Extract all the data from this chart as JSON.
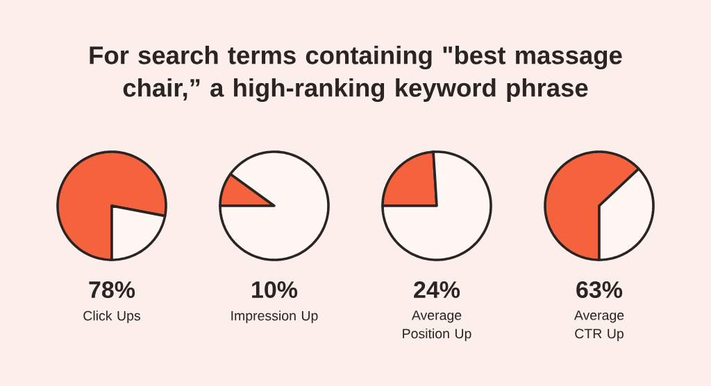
{
  "chart_data": [
    {
      "type": "other",
      "title": "For search terms containing \"best massage chair,” a high-ranking keyword phrase"
    },
    {
      "type": "pie",
      "title": "78%",
      "subtitle": "Click Ups",
      "categories": [
        null,
        null
      ],
      "values": [
        78,
        22
      ],
      "colors": [
        "#f4633e",
        "#fef7f4"
      ]
    },
    {
      "type": "pie",
      "title": "10%",
      "subtitle": "Impression Up",
      "categories": [
        null,
        null
      ],
      "values": [
        10,
        90
      ],
      "colors": [
        "#f4633e",
        "#fef7f4"
      ]
    },
    {
      "type": "pie",
      "title": "24%",
      "subtitle": "Average Position Up",
      "categories": [
        null,
        null
      ],
      "values": [
        24,
        76
      ],
      "colors": [
        "#f4633e",
        "#fef7f4"
      ]
    },
    {
      "type": "pie",
      "title": "63%",
      "subtitle": "Average CTR Up",
      "categories": [
        null,
        null
      ],
      "values": [
        63,
        37
      ],
      "colors": [
        "#f4633e",
        "#fef7f4"
      ]
    }
  ]
}
